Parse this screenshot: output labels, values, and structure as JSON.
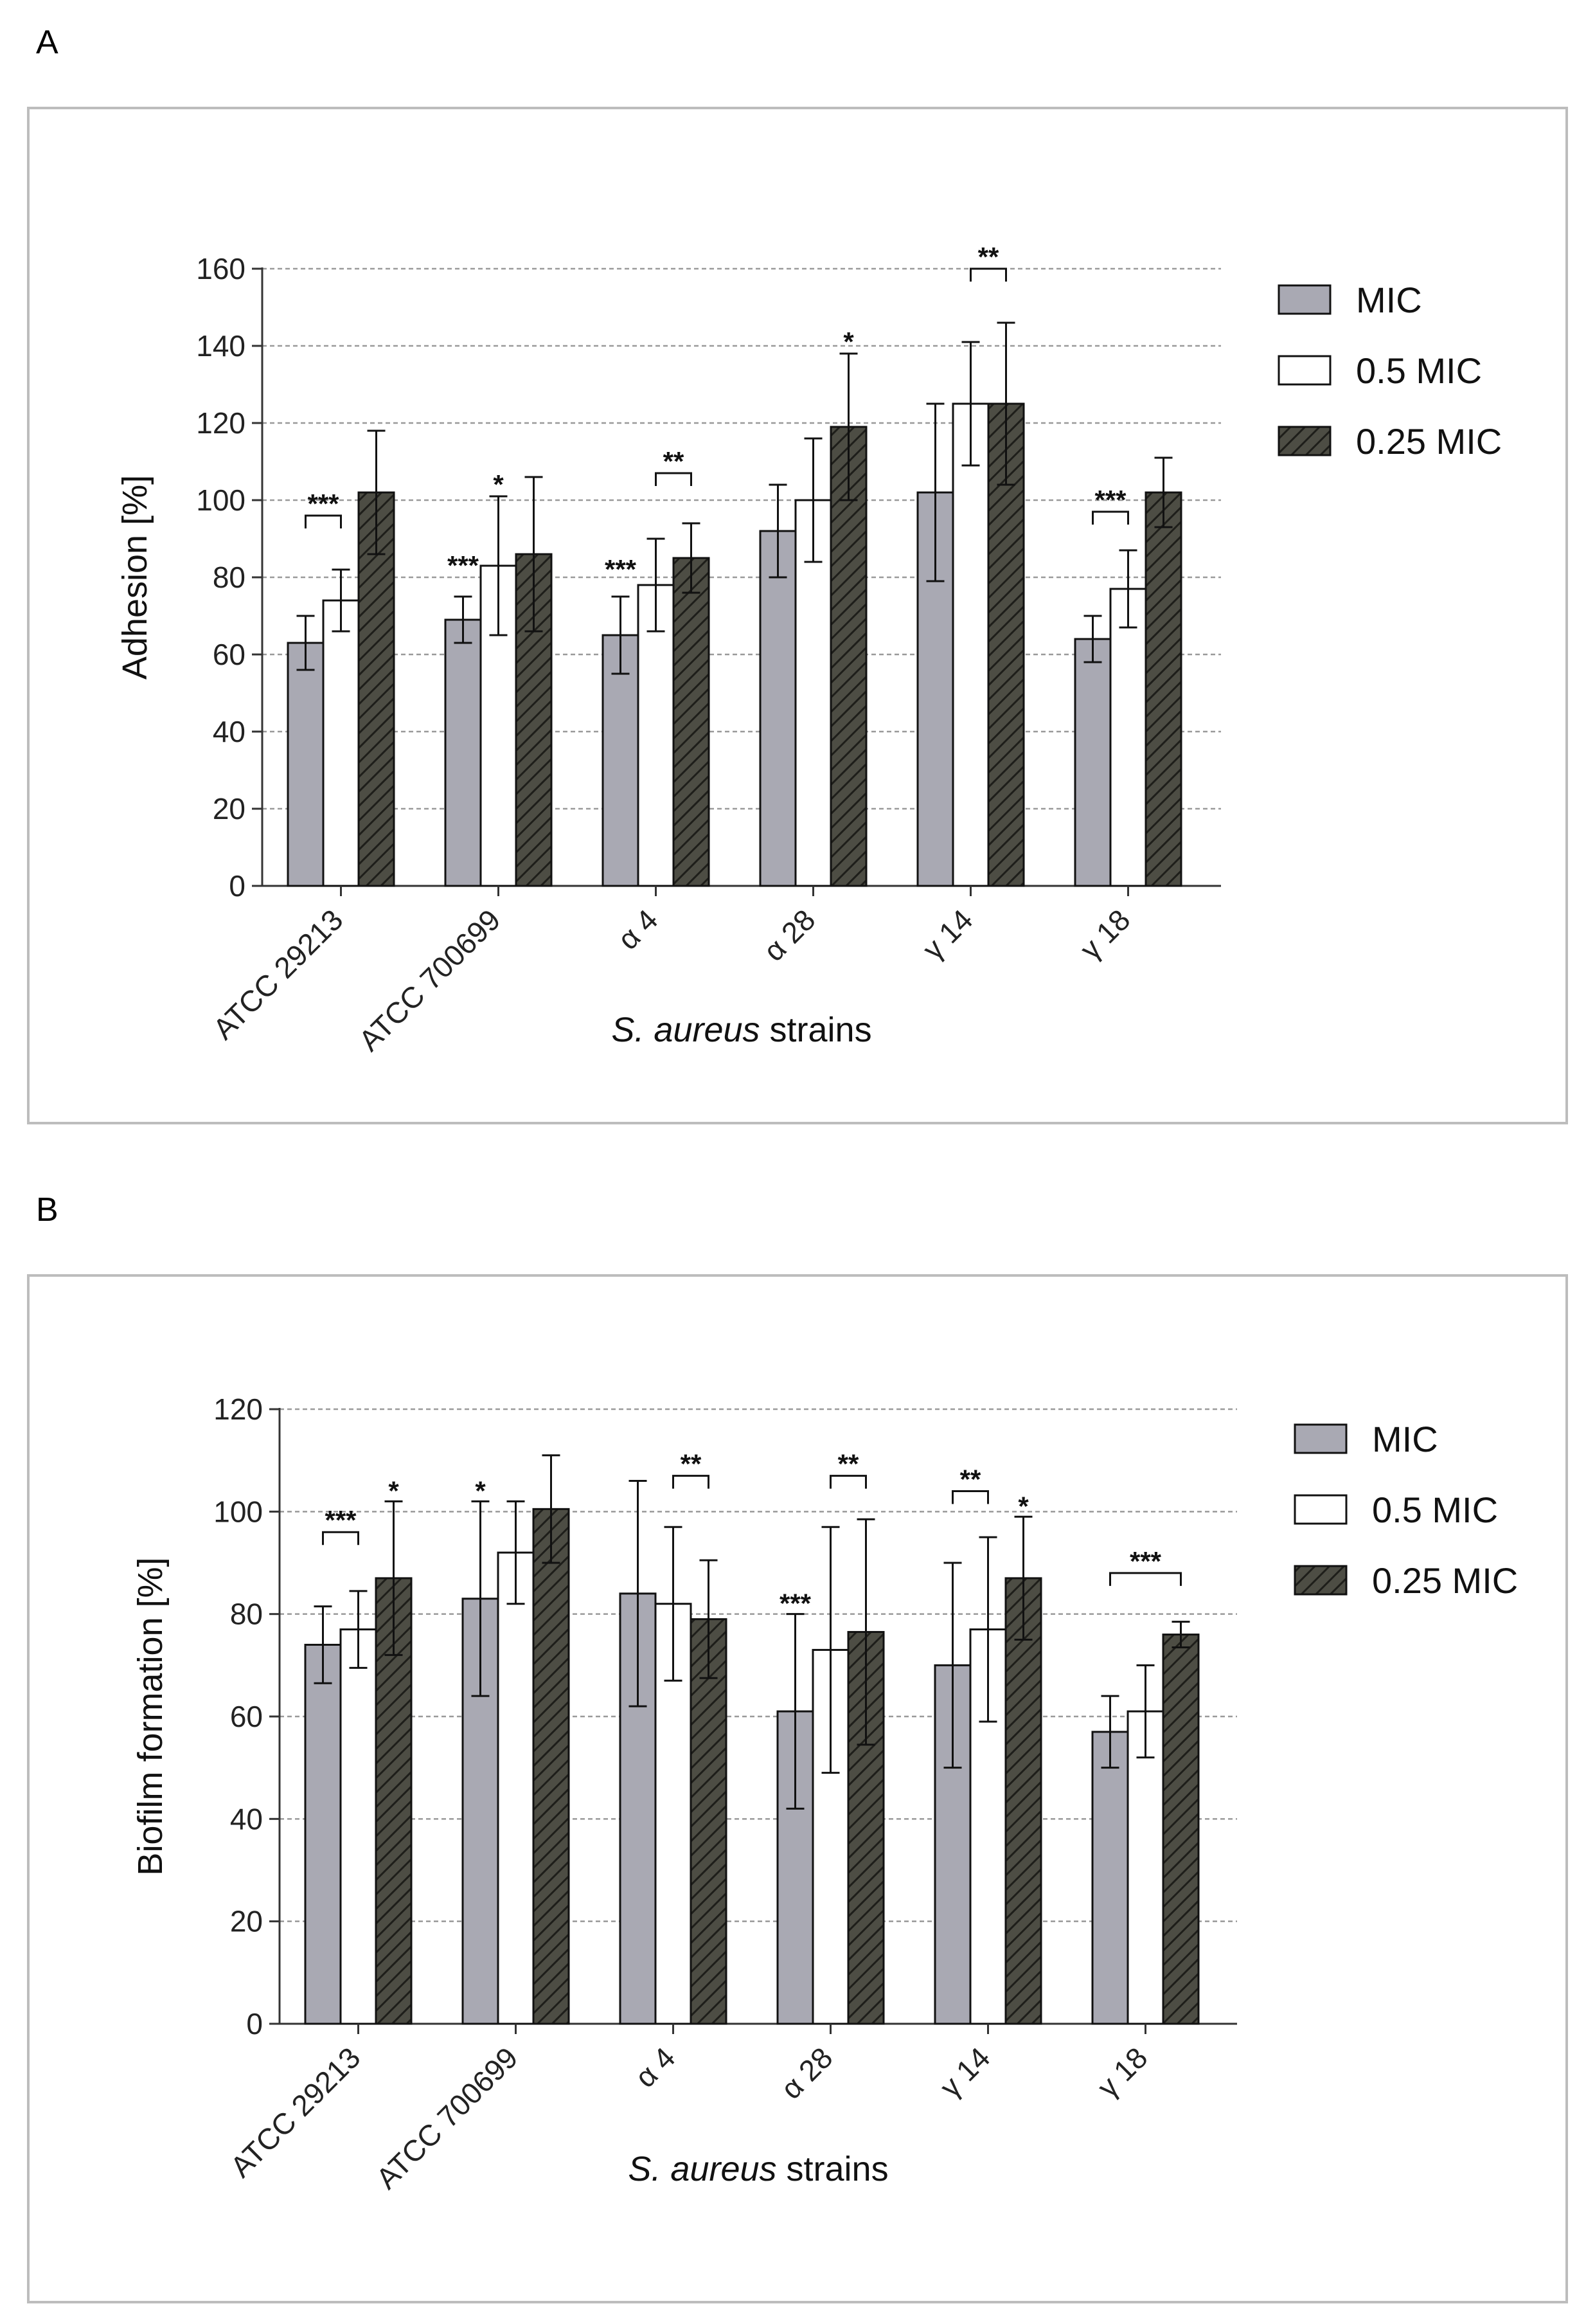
{
  "panel_labels": [
    "A",
    "B"
  ],
  "xlabel_parts": {
    "italic": "S. aureus",
    "normal": " strains"
  },
  "chart_data": [
    {
      "type": "bar",
      "panel": "A",
      "title": "",
      "xlabel": "S. aureus strains",
      "ylabel": "Adhesion [%]",
      "ylim": [
        0,
        160
      ],
      "yticks": [
        0,
        20,
        40,
        60,
        80,
        100,
        120,
        140,
        160
      ],
      "grid": true,
      "legend_position": "right",
      "categories": [
        "ATCC 29213",
        "ATCC 700699",
        "α 4",
        "α 28",
        "γ 14",
        "γ 18"
      ],
      "series": [
        {
          "name": "MIC",
          "values": [
            63,
            69,
            65,
            92,
            102,
            64
          ],
          "errors": [
            7,
            6,
            10,
            12,
            23,
            6
          ]
        },
        {
          "name": "0.5 MIC",
          "values": [
            74,
            83,
            78,
            100,
            125,
            77
          ],
          "errors": [
            8,
            18,
            12,
            16,
            16,
            10
          ]
        },
        {
          "name": "0.25 MIC",
          "values": [
            102,
            86,
            85,
            119,
            125,
            102
          ],
          "errors": [
            16,
            20,
            9,
            19,
            21,
            9
          ]
        }
      ],
      "significance": [
        {
          "label": "***",
          "category": 0,
          "from": 0,
          "to": 1,
          "y": 96,
          "bracket": true
        },
        {
          "label": "***",
          "category": 1,
          "at": 0,
          "y": 83,
          "bracket": false
        },
        {
          "label": "*",
          "category": 1,
          "at": 1,
          "y": 104,
          "bracket": false
        },
        {
          "label": "***",
          "category": 2,
          "at": 0,
          "y": 82,
          "bracket": false
        },
        {
          "label": "**",
          "category": 2,
          "from": 1,
          "to": 2,
          "y": 107,
          "bracket": true
        },
        {
          "label": "*",
          "category": 3,
          "at": 2,
          "y": 141,
          "bracket": false
        },
        {
          "label": "**",
          "category": 4,
          "from": 1,
          "to": 2,
          "y": 160,
          "bracket": true
        },
        {
          "label": "***",
          "category": 5,
          "from": 0,
          "to": 1,
          "y": 97,
          "bracket": true
        }
      ]
    },
    {
      "type": "bar",
      "panel": "B",
      "title": "",
      "xlabel": "S. aureus strains",
      "ylabel": "Biofilm formation [%]",
      "ylim": [
        0,
        120
      ],
      "yticks": [
        0,
        20,
        40,
        60,
        80,
        100,
        120
      ],
      "grid": true,
      "legend_position": "right",
      "categories": [
        "ATCC 29213",
        "ATCC 700699",
        "α 4",
        "α 28",
        "γ 14",
        "γ 18"
      ],
      "series": [
        {
          "name": "MIC",
          "values": [
            74,
            83,
            84,
            61,
            70,
            57
          ],
          "errors": [
            7.5,
            19,
            22,
            19,
            20,
            7
          ]
        },
        {
          "name": "0.5 MIC",
          "values": [
            77,
            92,
            82,
            73,
            77,
            61
          ],
          "errors": [
            7.5,
            10,
            15,
            24,
            18,
            9
          ]
        },
        {
          "name": "0.25 MIC",
          "values": [
            87,
            100.5,
            79,
            76.5,
            87,
            76
          ],
          "errors": [
            15,
            10.5,
            11.5,
            22,
            12,
            2.5
          ]
        }
      ],
      "significance": [
        {
          "label": "***",
          "category": 0,
          "from": 0,
          "to": 1,
          "y": 96,
          "bracket": true
        },
        {
          "label": "*",
          "category": 0,
          "at": 2,
          "y": 104,
          "bracket": false
        },
        {
          "label": "*",
          "category": 1,
          "at": 0,
          "y": 104,
          "bracket": false
        },
        {
          "label": "**",
          "category": 2,
          "from": 1,
          "to": 2,
          "y": 107,
          "bracket": true
        },
        {
          "label": "***",
          "category": 3,
          "at": 0,
          "y": 82,
          "bracket": false
        },
        {
          "label": "**",
          "category": 3,
          "from": 1,
          "to": 2,
          "y": 107,
          "bracket": true
        },
        {
          "label": "**",
          "category": 4,
          "from": 0,
          "to": 1,
          "y": 104,
          "bracket": true
        },
        {
          "label": "*",
          "category": 4,
          "at": 2,
          "y": 101,
          "bracket": false
        },
        {
          "label": "***",
          "category": 5,
          "from": 0,
          "to": 2,
          "y": 88,
          "bracket": true
        }
      ]
    }
  ],
  "colors": {
    "mic": "#a9a9b3",
    "half_mic": "#ffffff",
    "quarter_mic": "#4d4d44",
    "hatch": "#1e1e1a",
    "grid": "#9a9a9a",
    "frame": "#bdbdbd"
  }
}
